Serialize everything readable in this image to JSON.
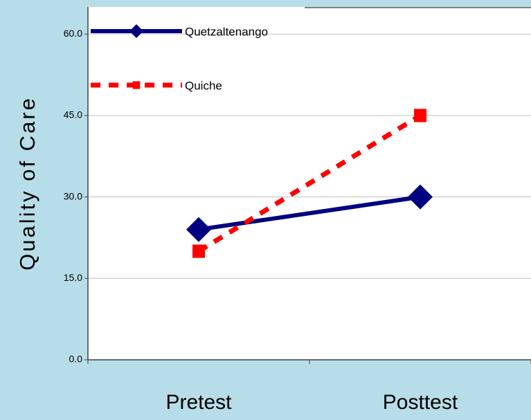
{
  "chart_data": {
    "type": "line",
    "y_label": "Quality of Care",
    "categories": [
      "Pretest",
      "Posttest"
    ],
    "series": [
      {
        "name": "Quetzaltenango",
        "color": "#000080",
        "marker": "diamond",
        "dash": false,
        "values": [
          24,
          30
        ]
      },
      {
        "name": "Quiche",
        "color": "#ff0000",
        "marker": "square",
        "dash": true,
        "values": [
          20,
          45
        ]
      }
    ],
    "ylim": [
      0,
      65
    ],
    "yticks": [
      {
        "value": 0,
        "label": "0.0"
      },
      {
        "value": 15,
        "label": "15.0"
      },
      {
        "value": 30,
        "label": "30.0"
      },
      {
        "value": 45,
        "label": "45.0"
      },
      {
        "value": 60,
        "label": "60.0"
      }
    ],
    "grid": true,
    "legend": "upper left"
  }
}
